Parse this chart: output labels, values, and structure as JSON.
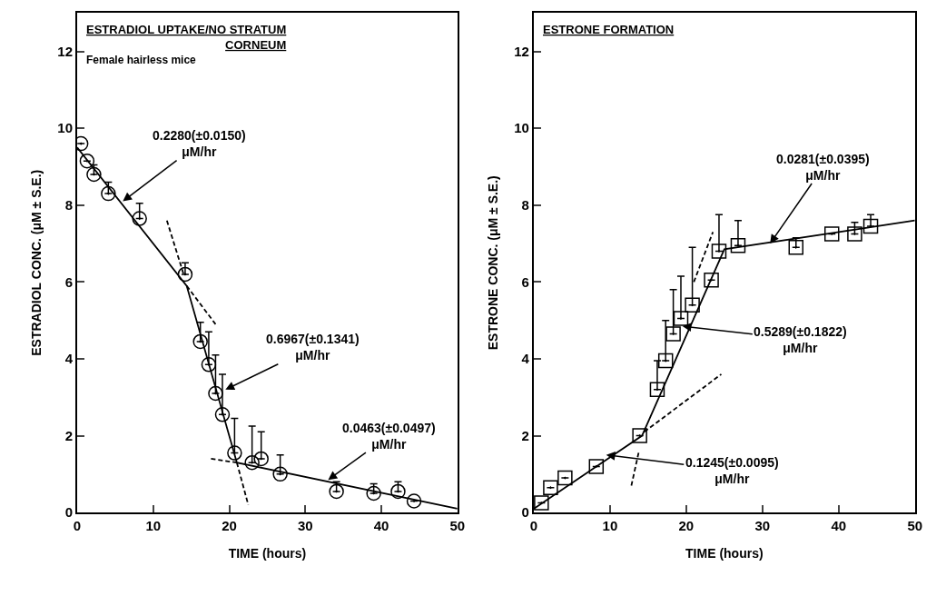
{
  "chart_data": [
    {
      "type": "scatter",
      "title": "ESTRADIOL UPTAKE/NO STRATUM\nCORNEUM",
      "subtitle": "Female hairless mice",
      "xlabel": "TIME (hours)",
      "ylabel": "ESTRADIOL CONC. (μM ± S.E.)",
      "xlim": [
        0,
        50
      ],
      "ylim": [
        0,
        13
      ],
      "xticks": [
        0,
        10,
        20,
        30,
        40,
        50
      ],
      "yticks": [
        0,
        2,
        4,
        6,
        8,
        10,
        12
      ],
      "series": [
        {
          "type": "scatter",
          "marker": "circle",
          "color": "#000000",
          "x": [
            0.5,
            1.3,
            2.2,
            4.1,
            8.2,
            14.2,
            16.2,
            17.3,
            18.2,
            19.1,
            20.7,
            23,
            24.2,
            26.7,
            34.1,
            39,
            42.2,
            44.3
          ],
          "values": [
            9.6,
            9.15,
            8.8,
            8.3,
            7.65,
            6.2,
            4.45,
            3.85,
            3.1,
            2.55,
            1.55,
            1.3,
            1.4,
            1.0,
            0.55,
            0.5,
            0.55,
            0.3
          ],
          "errors": [
            null,
            null,
            [
              8.8,
              9.05
            ],
            [
              8.3,
              8.6
            ],
            [
              7.65,
              8.05
            ],
            [
              6.2,
              6.5
            ],
            [
              4.45,
              4.95
            ],
            [
              3.85,
              4.7
            ],
            [
              3.1,
              4.1
            ],
            [
              2.55,
              3.6
            ],
            [
              1.55,
              2.45
            ],
            [
              1.3,
              2.25
            ],
            [
              1.4,
              2.1
            ],
            [
              1.0,
              1.5
            ],
            [
              0.55,
              0.8
            ],
            [
              0.5,
              0.75
            ],
            [
              0.55,
              0.8
            ],
            null
          ]
        },
        {
          "type": "line",
          "color": "#000000",
          "line_style": "solid",
          "x": [
            0,
            14.4,
            21,
            50
          ],
          "values": [
            9.5,
            5.9,
            1.3,
            0.1
          ]
        },
        {
          "type": "line",
          "color": "#000000",
          "line_style": "dashed",
          "x": [
            11.8,
            14.0
          ],
          "values": [
            7.6,
            6.2
          ]
        },
        {
          "type": "line",
          "color": "#000000",
          "line_style": "dashed",
          "x": [
            14.4,
            18.2
          ],
          "values": [
            5.9,
            4.9
          ]
        },
        {
          "type": "line",
          "color": "#000000",
          "line_style": "dashed",
          "x": [
            17.6,
            21
          ],
          "values": [
            1.4,
            1.3
          ]
        },
        {
          "type": "line",
          "color": "#000000",
          "line_style": "dashed",
          "x": [
            21,
            22.5
          ],
          "values": [
            1.3,
            0.2
          ]
        }
      ],
      "annotations": [
        {
          "text": "0.2280(±0.0150)\nμM/hr",
          "x": 6,
          "y": 8.1
        },
        {
          "text": "0.6967(±0.1341)\nμM/hr",
          "x": 19.5,
          "y": 3.2
        },
        {
          "text": "0.0463(±0.0497)\nμM/hr",
          "x": 33,
          "y": 0.85
        }
      ]
    },
    {
      "type": "scatter",
      "title": "ESTRONE FORMATION",
      "xlabel": "TIME (hours)",
      "ylabel": "ESTRONE CONC. (μM ± S.E.)",
      "xlim": [
        0,
        50
      ],
      "ylim": [
        0,
        13
      ],
      "xticks": [
        0,
        10,
        20,
        30,
        40,
        50
      ],
      "yticks": [
        0,
        2,
        4,
        6,
        8,
        10,
        12
      ],
      "series": [
        {
          "type": "scatter",
          "marker": "square",
          "color": "#000000",
          "x": [
            1,
            2.2,
            4.1,
            8.2,
            13.9,
            16.2,
            17.3,
            18.3,
            19.3,
            20.8,
            23.3,
            24.3,
            26.8,
            34.4,
            39.1,
            42.1,
            44.2
          ],
          "values": [
            0.25,
            0.65,
            0.9,
            1.2,
            2.0,
            3.2,
            3.95,
            4.65,
            5.05,
            5.4,
            6.05,
            6.8,
            6.95,
            6.9,
            7.25,
            7.25,
            7.45
          ],
          "errors": [
            null,
            null,
            null,
            null,
            null,
            [
              3.2,
              3.95
            ],
            [
              3.95,
              5.0
            ],
            [
              4.65,
              5.8
            ],
            [
              5.05,
              6.15
            ],
            [
              5.4,
              6.9
            ],
            null,
            [
              6.8,
              7.75
            ],
            [
              6.95,
              7.6
            ],
            [
              6.9,
              7.15
            ],
            null,
            [
              7.25,
              7.55
            ],
            [
              7.45,
              7.75
            ]
          ]
        },
        {
          "type": "line",
          "color": "#000000",
          "line_style": "solid",
          "x": [
            0,
            14.2,
            25,
            50
          ],
          "values": [
            0.1,
            2.0,
            6.85,
            7.6
          ]
        },
        {
          "type": "line",
          "color": "#000000",
          "line_style": "dashed",
          "x": [
            14.5,
            24.6
          ],
          "values": [
            2.1,
            3.6
          ]
        },
        {
          "type": "line",
          "color": "#000000",
          "line_style": "dashed",
          "x": [
            12.8,
            13.8
          ],
          "values": [
            0.7,
            1.6
          ]
        },
        {
          "type": "line",
          "color": "#000000",
          "line_style": "dashed",
          "x": [
            21,
            23.5
          ],
          "values": [
            6.0,
            7.3
          ]
        }
      ],
      "annotations": [
        {
          "text": "0.0281(±0.0395)\nμM/hr",
          "x": 31,
          "y": 7.0
        },
        {
          "text": "0.5289(±0.1822)\nμM/hr",
          "x": 19.5,
          "y": 4.85
        },
        {
          "text": "0.1245(±0.0095)\nμM/hr",
          "x": 9.5,
          "y": 1.5
        }
      ]
    }
  ]
}
